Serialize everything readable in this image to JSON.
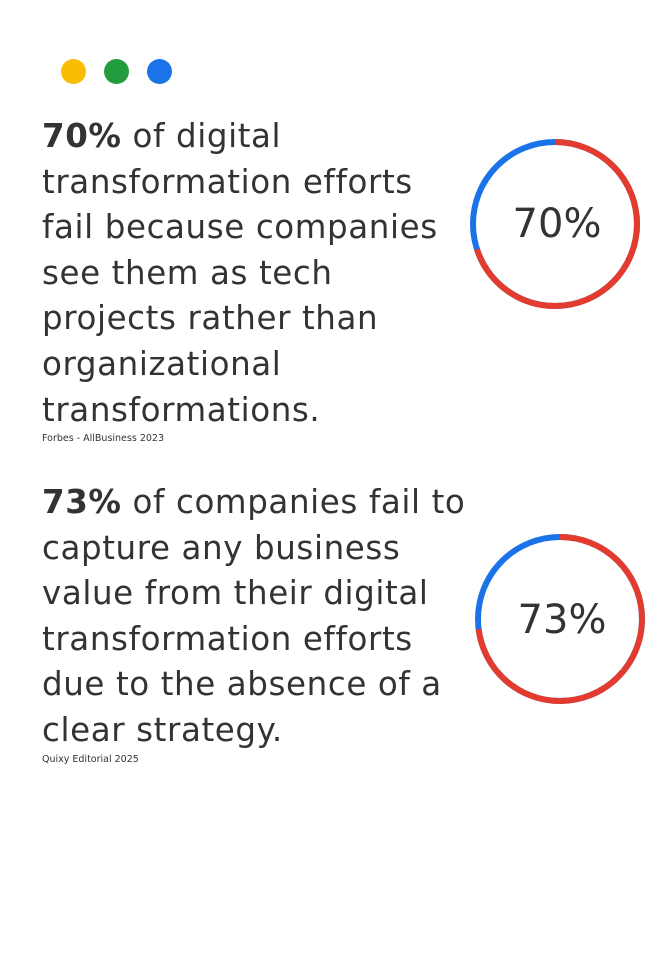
{
  "header_dots": [
    {
      "name": "yellow-dot",
      "color": "#FBBC04"
    },
    {
      "name": "green-dot",
      "color": "#239B3F"
    },
    {
      "name": "blue-dot",
      "color": "#1A73E8"
    }
  ],
  "colors": {
    "text": "#333333",
    "ring_progress": "#E33B2E",
    "ring_remainder": "#1A73E8"
  },
  "stats": [
    {
      "percent": "70%",
      "text": " of digital transformation efforts fail because companies see them as tech projects rather than organizational transformations.",
      "source": "Forbes - AllBusiness 2023"
    },
    {
      "percent": "73%",
      "text": " of companies fail to capture any business value from their digital transformation efforts due to the absence of a clear strategy.",
      "source": "Quixy Editorial 2025"
    }
  ],
  "chart_data": [
    {
      "type": "pie",
      "style": "donut",
      "value_label": "70%",
      "slices": [
        {
          "value": 70,
          "color": "#E33B2E"
        },
        {
          "value": 30,
          "color": "#1A73E8"
        }
      ]
    },
    {
      "type": "pie",
      "style": "donut",
      "value_label": "73%",
      "slices": [
        {
          "value": 73,
          "color": "#E33B2E"
        },
        {
          "value": 27,
          "color": "#1A73E8"
        }
      ]
    }
  ]
}
